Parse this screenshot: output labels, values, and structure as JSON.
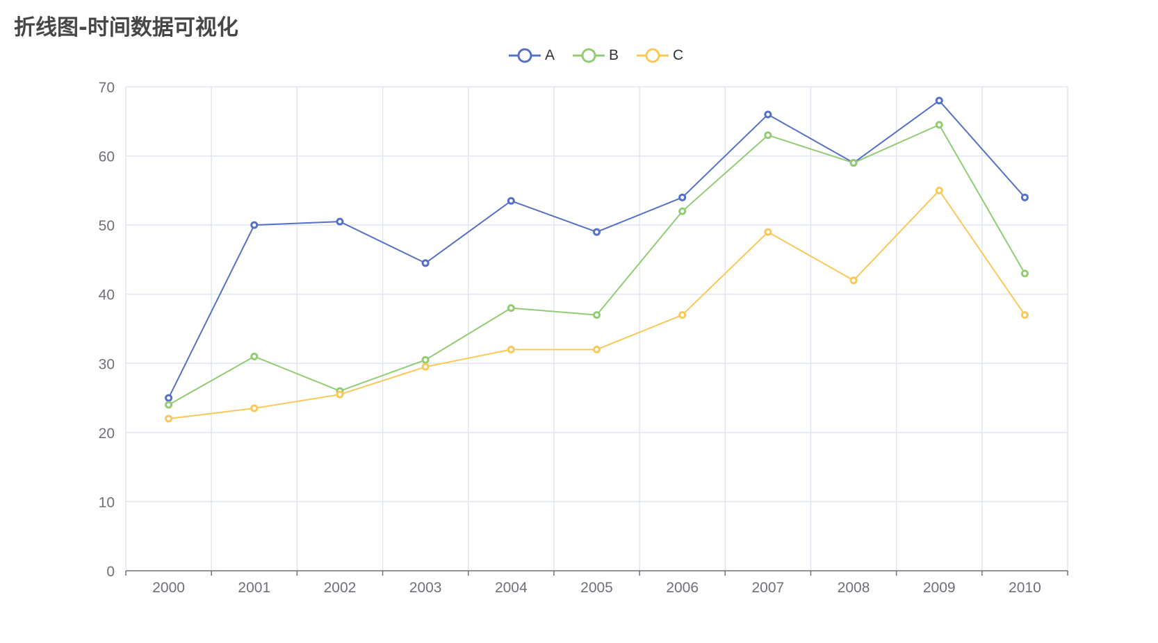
{
  "page": {
    "title": "折线图-时间数据可视化"
  },
  "chart_data": {
    "type": "line",
    "title": "折线图-时间数据可视化",
    "xlabel": "",
    "ylabel": "",
    "categories": [
      "2000",
      "2001",
      "2002",
      "2003",
      "2004",
      "2005",
      "2006",
      "2007",
      "2008",
      "2009",
      "2010"
    ],
    "ylim": [
      0,
      70
    ],
    "yticks": [
      "0",
      "10",
      "20",
      "30",
      "40",
      "50",
      "60",
      "70"
    ],
    "grid": true,
    "legend_position": "top-center",
    "series": [
      {
        "name": "A",
        "color": "#5470c6",
        "values": [
          25,
          50,
          50.5,
          44.5,
          53.5,
          49,
          54,
          66,
          59,
          68,
          54
        ]
      },
      {
        "name": "B",
        "color": "#91cc75",
        "values": [
          24,
          31,
          26,
          30.5,
          38,
          37,
          52,
          63,
          59,
          64.5,
          43
        ]
      },
      {
        "name": "C",
        "color": "#fac858",
        "values": [
          22,
          23.5,
          25.5,
          29.5,
          32,
          32,
          37,
          49,
          42,
          55,
          37
        ]
      }
    ]
  }
}
